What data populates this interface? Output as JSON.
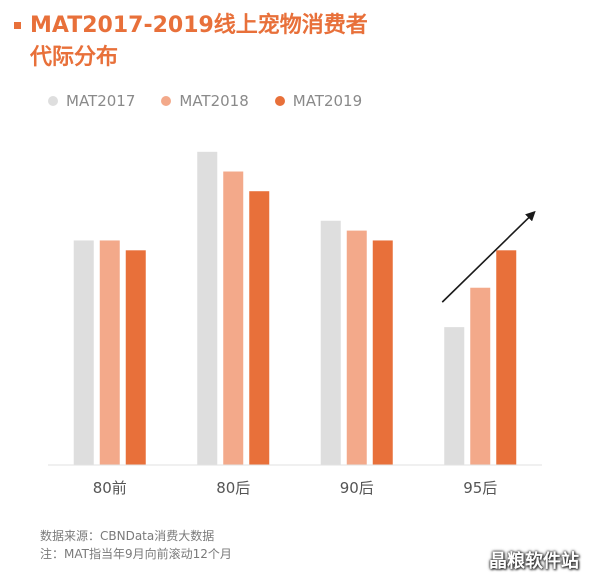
{
  "title_lines": [
    "MAT2017-2019线上宠物消费者",
    "代际分布"
  ],
  "colors": {
    "accent": "#e8703a"
  },
  "chart_data": {
    "type": "bar",
    "categories": [
      "80前",
      "80后",
      "90后",
      "95后"
    ],
    "series": [
      {
        "name": "MAT2017",
        "color": "#dedede",
        "values": [
          228,
          318,
          248,
          140
        ]
      },
      {
        "name": "MAT2018",
        "color": "#f3a98a",
        "values": [
          228,
          298,
          238,
          180
        ]
      },
      {
        "name": "MAT2019",
        "color": "#e8703a",
        "values": [
          218,
          278,
          228,
          218
        ]
      }
    ],
    "ylim": [
      0,
      330
    ],
    "trend_arrow": {
      "from_category": "95后",
      "direction": "up"
    }
  },
  "source_lines": [
    "数据来源：CBNData消费大数据",
    "注：MAT指当年9月向前滚动12个月"
  ],
  "watermark": "晶粮软件站"
}
